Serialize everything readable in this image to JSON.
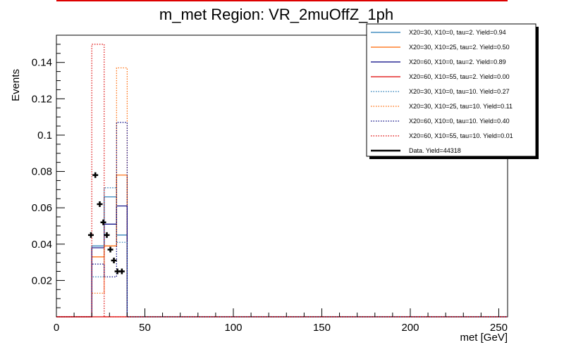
{
  "chart_data": {
    "type": "histogram",
    "title": "m_met Region: VR_2muOffZ_1ph",
    "xlabel": "met [GeV]",
    "ylabel": "Events",
    "xlim": [
      0,
      255
    ],
    "ylim": [
      0,
      0.155
    ],
    "x_ticks": [
      0,
      50,
      100,
      150,
      200,
      250
    ],
    "x_tick_labels": [
      "0",
      "50",
      "100",
      "150",
      "200",
      "250"
    ],
    "y_ticks": [
      0.02,
      0.04,
      0.06,
      0.08,
      0.1,
      0.12,
      0.14
    ],
    "y_tick_labels": [
      "0.02",
      "0.04",
      "0.06",
      "0.08",
      "0.1",
      "0.12",
      "0.14"
    ],
    "bin_edges": [
      0,
      10,
      20,
      27,
      34,
      40,
      50,
      255
    ],
    "series": [
      {
        "name": "X20=30, X10=0, tau=2. Yield=0.94",
        "color": "#1f77b4",
        "style": "solid",
        "values": [
          0,
          0,
          0.039,
          0.066,
          0.045,
          0,
          0
        ]
      },
      {
        "name": "X20=30, X10=25, tau=2. Yield=0.50",
        "color": "#ff6600",
        "style": "solid",
        "values": [
          0,
          0,
          0.033,
          0.039,
          0.078,
          0,
          0
        ]
      },
      {
        "name": "X20=60, X10=0, tau=2. Yield=0.89",
        "color": "#000080",
        "style": "solid",
        "values": [
          0,
          0,
          0.038,
          0.051,
          0.061,
          0,
          0
        ]
      },
      {
        "name": "X20=60, X10=55, tau=2. Yield=0.00",
        "color": "#dd0000",
        "style": "solid",
        "values": [
          0,
          0,
          0,
          0,
          0,
          0,
          0
        ]
      },
      {
        "name": "X20=30, X10=0, tau=10. Yield=0.27",
        "color": "#1f77b4",
        "style": "dotted",
        "values": [
          0,
          0,
          0.022,
          0.071,
          0.041,
          0,
          0
        ]
      },
      {
        "name": "X20=30, X10=25, tau=10. Yield=0.11",
        "color": "#ff6600",
        "style": "dotted",
        "values": [
          0,
          0,
          0.013,
          0.039,
          0.137,
          0,
          0
        ]
      },
      {
        "name": "X20=60, X10=0, tau=10. Yield=0.40",
        "color": "#000080",
        "style": "dotted",
        "values": [
          0,
          0,
          0.029,
          0.022,
          0.107,
          0,
          0
        ]
      },
      {
        "name": "X20=60, X10=55, tau=10. Yield=0.01",
        "color": "#dd0000",
        "style": "dotted",
        "values": [
          0,
          0,
          0.15,
          0,
          0,
          0,
          0
        ]
      }
    ],
    "data_points": {
      "name": "Data. Yield=44318",
      "color": "#000000",
      "x": [
        20,
        22,
        24,
        26,
        28,
        30,
        32,
        34,
        36
      ],
      "y": [
        0.045,
        0.078,
        0.062,
        0.052,
        0.045,
        0.037,
        0.031,
        0.025,
        0.025
      ]
    },
    "data_x_override": [
      19.5,
      22,
      24.5,
      26.5,
      28.5,
      30.5,
      32.5,
      34.5,
      37
    ],
    "legend_position": "top-right"
  }
}
